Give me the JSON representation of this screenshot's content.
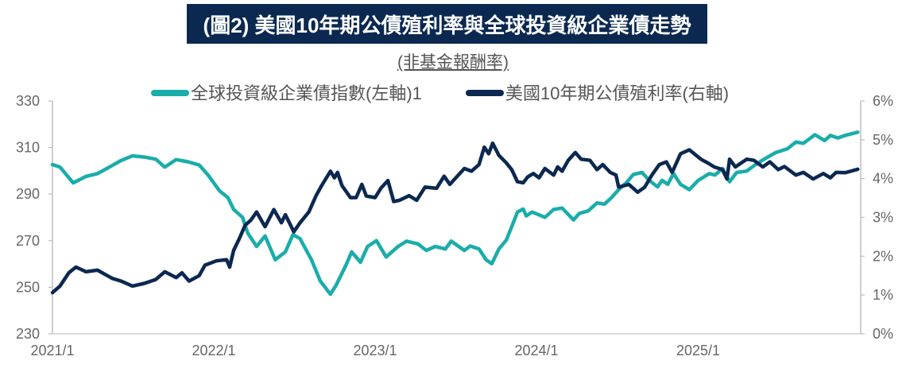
{
  "chart_data": {
    "type": "line",
    "title": "(圖2) 美國10年期公債殖利率與全球投資級企業債走勢",
    "subtitle": "(非基金報酬率)",
    "x_ticks": [
      "2021/1",
      "2022/1",
      "2023/1",
      "2024/1",
      "2025/1"
    ],
    "x_tick_dates": [
      "2021-01-01",
      "2022-01-01",
      "2023-01-01",
      "2024-01-01",
      "2025-01-01"
    ],
    "xlim": [
      "2021-01-01",
      "2026-01-05"
    ],
    "y_left": {
      "ticks": [
        "230",
        "250",
        "270",
        "290",
        "310",
        "330"
      ],
      "ylim": [
        230,
        330
      ]
    },
    "y_right": {
      "ticks": [
        "0%",
        "1%",
        "2%",
        "3%",
        "4%",
        "5%",
        "6%"
      ],
      "ylim": [
        0,
        6
      ],
      "unit": "%"
    },
    "grid": false,
    "legend_placement": "top",
    "series": [
      {
        "name": "全球投資級企業債指數(左軸)1",
        "axis": "left",
        "color": "#1aadaa",
        "points": [
          [
            "2021-01-01",
            302.7
          ],
          [
            "2021-01-18",
            301.6
          ],
          [
            "2021-02-17",
            294.8
          ],
          [
            "2021-03-18",
            297.6
          ],
          [
            "2021-04-13",
            298.8
          ],
          [
            "2021-05-10",
            301.6
          ],
          [
            "2021-06-05",
            304.4
          ],
          [
            "2021-07-01",
            306.4
          ],
          [
            "2021-07-28",
            305.9
          ],
          [
            "2021-08-23",
            305.0
          ],
          [
            "2021-09-12",
            301.6
          ],
          [
            "2021-10-08",
            304.8
          ],
          [
            "2021-11-03",
            303.9
          ],
          [
            "2021-11-29",
            302.5
          ],
          [
            "2021-12-19",
            298.2
          ],
          [
            "2022-01-14",
            291.4
          ],
          [
            "2022-02-02",
            288.5
          ],
          [
            "2022-02-15",
            283.4
          ],
          [
            "2022-03-07",
            280.0
          ],
          [
            "2022-03-19",
            273.2
          ],
          [
            "2022-04-08",
            267.5
          ],
          [
            "2022-04-27",
            272.0
          ],
          [
            "2022-05-20",
            261.8
          ],
          [
            "2022-06-12",
            265.2
          ],
          [
            "2022-06-29",
            272.6
          ],
          [
            "2022-07-15",
            270.9
          ],
          [
            "2022-08-10",
            261.8
          ],
          [
            "2022-08-30",
            252.7
          ],
          [
            "2022-09-22",
            247.0
          ],
          [
            "2022-10-05",
            251.0
          ],
          [
            "2022-10-27",
            259.5
          ],
          [
            "2022-11-09",
            265.2
          ],
          [
            "2022-11-29",
            260.7
          ],
          [
            "2022-12-15",
            267.5
          ],
          [
            "2023-01-04",
            270.0
          ],
          [
            "2023-01-26",
            263.0
          ],
          [
            "2023-02-22",
            267.5
          ],
          [
            "2023-03-13",
            269.8
          ],
          [
            "2023-04-08",
            268.6
          ],
          [
            "2023-04-27",
            265.8
          ],
          [
            "2023-05-17",
            267.5
          ],
          [
            "2023-06-09",
            266.4
          ],
          [
            "2023-06-22",
            269.8
          ],
          [
            "2023-07-22",
            265.8
          ],
          [
            "2023-08-04",
            267.7
          ],
          [
            "2023-08-24",
            266.4
          ],
          [
            "2023-09-09",
            261.8
          ],
          [
            "2023-09-22",
            260.1
          ],
          [
            "2023-10-08",
            266.4
          ],
          [
            "2023-10-25",
            270.3
          ],
          [
            "2023-11-06",
            276.0
          ],
          [
            "2023-11-19",
            282.3
          ],
          [
            "2023-12-02",
            283.6
          ],
          [
            "2023-12-09",
            280.6
          ],
          [
            "2023-12-22",
            282.3
          ],
          [
            "2024-01-07",
            281.1
          ],
          [
            "2024-01-20",
            280.0
          ],
          [
            "2024-02-09",
            283.4
          ],
          [
            "2024-02-28",
            284.0
          ],
          [
            "2024-03-25",
            278.9
          ],
          [
            "2024-04-07",
            281.7
          ],
          [
            "2024-04-27",
            282.8
          ],
          [
            "2024-05-17",
            286.2
          ],
          [
            "2024-06-03",
            285.7
          ],
          [
            "2024-06-19",
            288.5
          ],
          [
            "2024-07-05",
            291.9
          ],
          [
            "2024-07-22",
            294.8
          ],
          [
            "2024-08-07",
            298.4
          ],
          [
            "2024-08-27",
            299.3
          ],
          [
            "2024-09-12",
            295.9
          ],
          [
            "2024-10-01",
            293.1
          ],
          [
            "2024-10-11",
            295.9
          ],
          [
            "2024-10-24",
            294.2
          ],
          [
            "2024-11-06",
            298.8
          ],
          [
            "2024-11-22",
            294.2
          ],
          [
            "2024-12-12",
            291.9
          ],
          [
            "2025-01-01",
            295.9
          ],
          [
            "2025-01-26",
            298.8
          ],
          [
            "2025-02-08",
            298.2
          ],
          [
            "2025-02-25",
            301.0
          ],
          [
            "2025-03-13",
            295.3
          ],
          [
            "2025-03-29",
            299.3
          ],
          [
            "2025-04-21",
            299.9
          ],
          [
            "2025-05-07",
            302.2
          ],
          [
            "2025-05-30",
            305.0
          ],
          [
            "2025-06-25",
            307.8
          ],
          [
            "2025-07-22",
            309.5
          ],
          [
            "2025-08-10",
            312.4
          ],
          [
            "2025-08-27",
            311.8
          ],
          [
            "2025-09-22",
            315.5
          ],
          [
            "2025-10-14",
            313.0
          ],
          [
            "2025-10-27",
            315.2
          ],
          [
            "2025-11-13",
            314.1
          ],
          [
            "2025-11-29",
            315.2
          ],
          [
            "2025-12-28",
            316.6
          ]
        ]
      },
      {
        "name": "美國10年期公債殖利率(右軸)",
        "axis": "right",
        "color": "#0b2850",
        "points": [
          [
            "2021-01-01",
            1.06
          ],
          [
            "2021-01-18",
            1.23
          ],
          [
            "2021-02-07",
            1.57
          ],
          [
            "2021-02-23",
            1.72
          ],
          [
            "2021-03-18",
            1.6
          ],
          [
            "2021-04-13",
            1.64
          ],
          [
            "2021-05-16",
            1.43
          ],
          [
            "2021-06-05",
            1.36
          ],
          [
            "2021-07-01",
            1.23
          ],
          [
            "2021-07-28",
            1.3
          ],
          [
            "2021-08-23",
            1.4
          ],
          [
            "2021-09-12",
            1.6
          ],
          [
            "2021-10-08",
            1.45
          ],
          [
            "2021-10-21",
            1.57
          ],
          [
            "2021-11-06",
            1.36
          ],
          [
            "2021-11-29",
            1.5
          ],
          [
            "2021-12-12",
            1.77
          ],
          [
            "2022-01-07",
            1.88
          ],
          [
            "2022-01-30",
            1.91
          ],
          [
            "2022-02-06",
            1.72
          ],
          [
            "2022-02-15",
            2.15
          ],
          [
            "2022-02-28",
            2.46
          ],
          [
            "2022-03-13",
            2.8
          ],
          [
            "2022-03-26",
            2.93
          ],
          [
            "2022-04-08",
            3.14
          ],
          [
            "2022-04-27",
            2.76
          ],
          [
            "2022-05-17",
            3.2
          ],
          [
            "2022-06-03",
            2.86
          ],
          [
            "2022-06-12",
            3.07
          ],
          [
            "2022-07-01",
            2.63
          ],
          [
            "2022-07-15",
            2.86
          ],
          [
            "2022-08-04",
            3.14
          ],
          [
            "2022-08-20",
            3.55
          ],
          [
            "2022-09-02",
            3.82
          ],
          [
            "2022-09-22",
            4.19
          ],
          [
            "2022-10-01",
            4.02
          ],
          [
            "2022-10-08",
            4.16
          ],
          [
            "2022-10-18",
            3.82
          ],
          [
            "2022-11-06",
            3.51
          ],
          [
            "2022-11-19",
            3.51
          ],
          [
            "2022-12-02",
            3.85
          ],
          [
            "2022-12-12",
            3.55
          ],
          [
            "2023-01-01",
            3.51
          ],
          [
            "2023-01-14",
            3.75
          ],
          [
            "2023-01-30",
            3.95
          ],
          [
            "2023-02-12",
            3.41
          ],
          [
            "2023-02-25",
            3.44
          ],
          [
            "2023-03-19",
            3.56
          ],
          [
            "2023-04-05",
            3.44
          ],
          [
            "2023-04-24",
            3.78
          ],
          [
            "2023-05-20",
            3.75
          ],
          [
            "2023-06-06",
            4.06
          ],
          [
            "2023-06-19",
            3.85
          ],
          [
            "2023-07-22",
            4.26
          ],
          [
            "2023-08-07",
            4.19
          ],
          [
            "2023-08-24",
            4.36
          ],
          [
            "2023-09-05",
            4.81
          ],
          [
            "2023-09-15",
            4.64
          ],
          [
            "2023-09-24",
            4.91
          ],
          [
            "2023-10-08",
            4.6
          ],
          [
            "2023-10-25",
            4.4
          ],
          [
            "2023-11-06",
            4.23
          ],
          [
            "2023-11-19",
            3.92
          ],
          [
            "2023-12-02",
            3.89
          ],
          [
            "2023-12-12",
            4.04
          ],
          [
            "2023-12-25",
            4.13
          ],
          [
            "2024-01-07",
            4.02
          ],
          [
            "2024-01-20",
            4.26
          ],
          [
            "2024-02-09",
            4.09
          ],
          [
            "2024-02-18",
            4.3
          ],
          [
            "2024-02-28",
            4.19
          ],
          [
            "2024-03-13",
            4.47
          ],
          [
            "2024-03-29",
            4.67
          ],
          [
            "2024-04-11",
            4.5
          ],
          [
            "2024-05-01",
            4.47
          ],
          [
            "2024-05-17",
            4.23
          ],
          [
            "2024-05-30",
            4.36
          ],
          [
            "2024-06-16",
            4.16
          ],
          [
            "2024-06-29",
            4.09
          ],
          [
            "2024-07-05",
            3.78
          ],
          [
            "2024-07-28",
            3.85
          ],
          [
            "2024-08-17",
            3.65
          ],
          [
            "2024-09-02",
            3.78
          ],
          [
            "2024-09-18",
            4.09
          ],
          [
            "2024-10-05",
            4.36
          ],
          [
            "2024-10-21",
            4.43
          ],
          [
            "2024-11-03",
            4.16
          ],
          [
            "2024-11-22",
            4.64
          ],
          [
            "2024-12-12",
            4.74
          ],
          [
            "2025-01-07",
            4.5
          ],
          [
            "2025-01-23",
            4.4
          ],
          [
            "2025-02-06",
            4.3
          ],
          [
            "2025-02-25",
            4.23
          ],
          [
            "2025-03-07",
            3.99
          ],
          [
            "2025-03-13",
            4.5
          ],
          [
            "2025-03-26",
            4.3
          ],
          [
            "2025-04-21",
            4.5
          ],
          [
            "2025-05-07",
            4.47
          ],
          [
            "2025-05-27",
            4.3
          ],
          [
            "2025-06-12",
            4.43
          ],
          [
            "2025-07-01",
            4.23
          ],
          [
            "2025-07-15",
            4.31
          ],
          [
            "2025-08-10",
            4.09
          ],
          [
            "2025-08-27",
            4.16
          ],
          [
            "2025-09-18",
            3.99
          ],
          [
            "2025-10-11",
            4.13
          ],
          [
            "2025-10-27",
            4.02
          ],
          [
            "2025-11-09",
            4.16
          ],
          [
            "2025-11-29",
            4.15
          ],
          [
            "2025-12-12",
            4.19
          ],
          [
            "2025-12-28",
            4.24
          ]
        ]
      }
    ]
  }
}
